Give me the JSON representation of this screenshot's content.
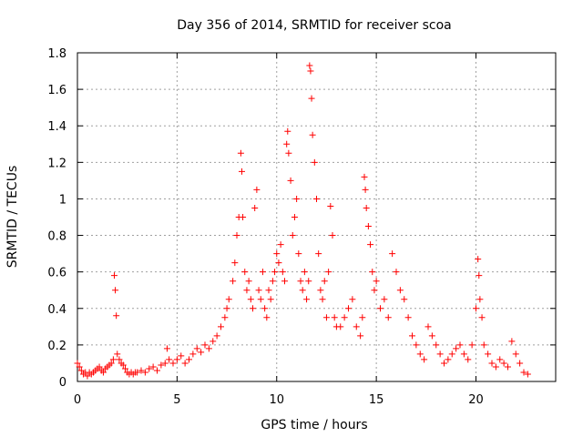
{
  "chart_data": {
    "type": "scatter",
    "title": "Day 356 of 2014, SRMTID for receiver scoa",
    "xlabel": "GPS time / hours",
    "ylabel": "SRMTID / TECUs",
    "xlim": [
      0,
      24
    ],
    "ylim": [
      0,
      1.8
    ],
    "xticks": [
      0,
      5,
      10,
      15,
      20
    ],
    "xtick_labels": [
      "0",
      "5",
      "10",
      "15",
      "20"
    ],
    "yticks": [
      0,
      0.2,
      0.4,
      0.6,
      0.8,
      1,
      1.2,
      1.4,
      1.6,
      1.8
    ],
    "ytick_labels": [
      "0",
      "0.2",
      "0.4",
      "0.6",
      "0.8",
      "1",
      "1.2",
      "1.4",
      "1.6",
      "1.8"
    ],
    "grid": true,
    "marker": "plus",
    "color": "#ff0000",
    "series": [
      {
        "name": "SRMTID",
        "x": [
          0.0,
          0.1,
          0.2,
          0.3,
          0.4,
          0.5,
          0.6,
          0.7,
          0.8,
          0.9,
          1.0,
          1.1,
          1.2,
          1.3,
          1.4,
          1.5,
          1.6,
          1.7,
          1.8,
          1.85,
          1.9,
          1.95,
          2.0,
          2.1,
          2.2,
          2.3,
          2.4,
          2.5,
          2.6,
          2.7,
          2.8,
          2.9,
          3.0,
          3.2,
          3.4,
          3.6,
          3.8,
          4.0,
          4.2,
          4.4,
          4.5,
          4.6,
          4.8,
          5.0,
          5.2,
          5.4,
          5.6,
          5.8,
          6.0,
          6.2,
          6.4,
          6.6,
          6.8,
          7.0,
          7.2,
          7.4,
          7.5,
          7.6,
          7.8,
          7.9,
          8.0,
          8.1,
          8.2,
          8.25,
          8.3,
          8.4,
          8.5,
          8.6,
          8.7,
          8.8,
          8.9,
          9.0,
          9.1,
          9.2,
          9.3,
          9.4,
          9.5,
          9.6,
          9.7,
          9.8,
          9.9,
          10.0,
          10.1,
          10.2,
          10.3,
          10.4,
          10.5,
          10.55,
          10.6,
          10.7,
          10.8,
          10.9,
          11.0,
          11.1,
          11.2,
          11.3,
          11.4,
          11.5,
          11.6,
          11.65,
          11.7,
          11.75,
          11.8,
          11.9,
          12.0,
          12.1,
          12.2,
          12.3,
          12.4,
          12.5,
          12.6,
          12.7,
          12.8,
          12.9,
          13.0,
          13.2,
          13.4,
          13.6,
          13.8,
          14.0,
          14.2,
          14.3,
          14.4,
          14.45,
          14.5,
          14.6,
          14.7,
          14.8,
          14.9,
          15.0,
          15.2,
          15.4,
          15.6,
          15.8,
          16.0,
          16.2,
          16.4,
          16.6,
          16.8,
          17.0,
          17.2,
          17.4,
          17.6,
          17.8,
          18.0,
          18.2,
          18.4,
          18.6,
          18.8,
          19.0,
          19.2,
          19.4,
          19.6,
          19.8,
          20.0,
          20.1,
          20.15,
          20.2,
          20.3,
          20.4,
          20.6,
          20.8,
          21.0,
          21.2,
          21.4,
          21.6,
          21.8,
          22.0,
          22.2,
          22.4,
          22.6
        ],
        "y": [
          0.1,
          0.08,
          0.06,
          0.04,
          0.05,
          0.03,
          0.05,
          0.04,
          0.05,
          0.06,
          0.07,
          0.08,
          0.06,
          0.05,
          0.07,
          0.08,
          0.09,
          0.1,
          0.12,
          0.58,
          0.5,
          0.36,
          0.15,
          0.12,
          0.1,
          0.09,
          0.07,
          0.05,
          0.04,
          0.05,
          0.04,
          0.05,
          0.05,
          0.06,
          0.05,
          0.07,
          0.08,
          0.06,
          0.09,
          0.1,
          0.18,
          0.12,
          0.1,
          0.12,
          0.14,
          0.1,
          0.12,
          0.15,
          0.18,
          0.16,
          0.2,
          0.18,
          0.22,
          0.25,
          0.3,
          0.35,
          0.4,
          0.45,
          0.55,
          0.65,
          0.8,
          0.9,
          1.25,
          1.15,
          0.9,
          0.6,
          0.5,
          0.55,
          0.45,
          0.4,
          0.95,
          1.05,
          0.5,
          0.45,
          0.6,
          0.4,
          0.35,
          0.5,
          0.45,
          0.55,
          0.6,
          0.7,
          0.65,
          0.75,
          0.6,
          0.55,
          1.3,
          1.37,
          1.25,
          1.1,
          0.8,
          0.9,
          1.0,
          0.7,
          0.55,
          0.5,
          0.6,
          0.45,
          0.55,
          1.73,
          1.7,
          1.55,
          1.35,
          1.2,
          1.0,
          0.7,
          0.5,
          0.45,
          0.55,
          0.35,
          0.6,
          0.96,
          0.8,
          0.35,
          0.3,
          0.3,
          0.35,
          0.4,
          0.45,
          0.3,
          0.25,
          0.35,
          1.12,
          1.05,
          0.95,
          0.85,
          0.75,
          0.6,
          0.5,
          0.55,
          0.4,
          0.45,
          0.35,
          0.7,
          0.6,
          0.5,
          0.45,
          0.35,
          0.25,
          0.2,
          0.15,
          0.12,
          0.3,
          0.25,
          0.2,
          0.15,
          0.1,
          0.12,
          0.15,
          0.18,
          0.2,
          0.15,
          0.12,
          0.2,
          0.4,
          0.67,
          0.58,
          0.45,
          0.35,
          0.2,
          0.15,
          0.1,
          0.08,
          0.12,
          0.1,
          0.08,
          0.22,
          0.15,
          0.1,
          0.05,
          0.04
        ]
      }
    ]
  }
}
